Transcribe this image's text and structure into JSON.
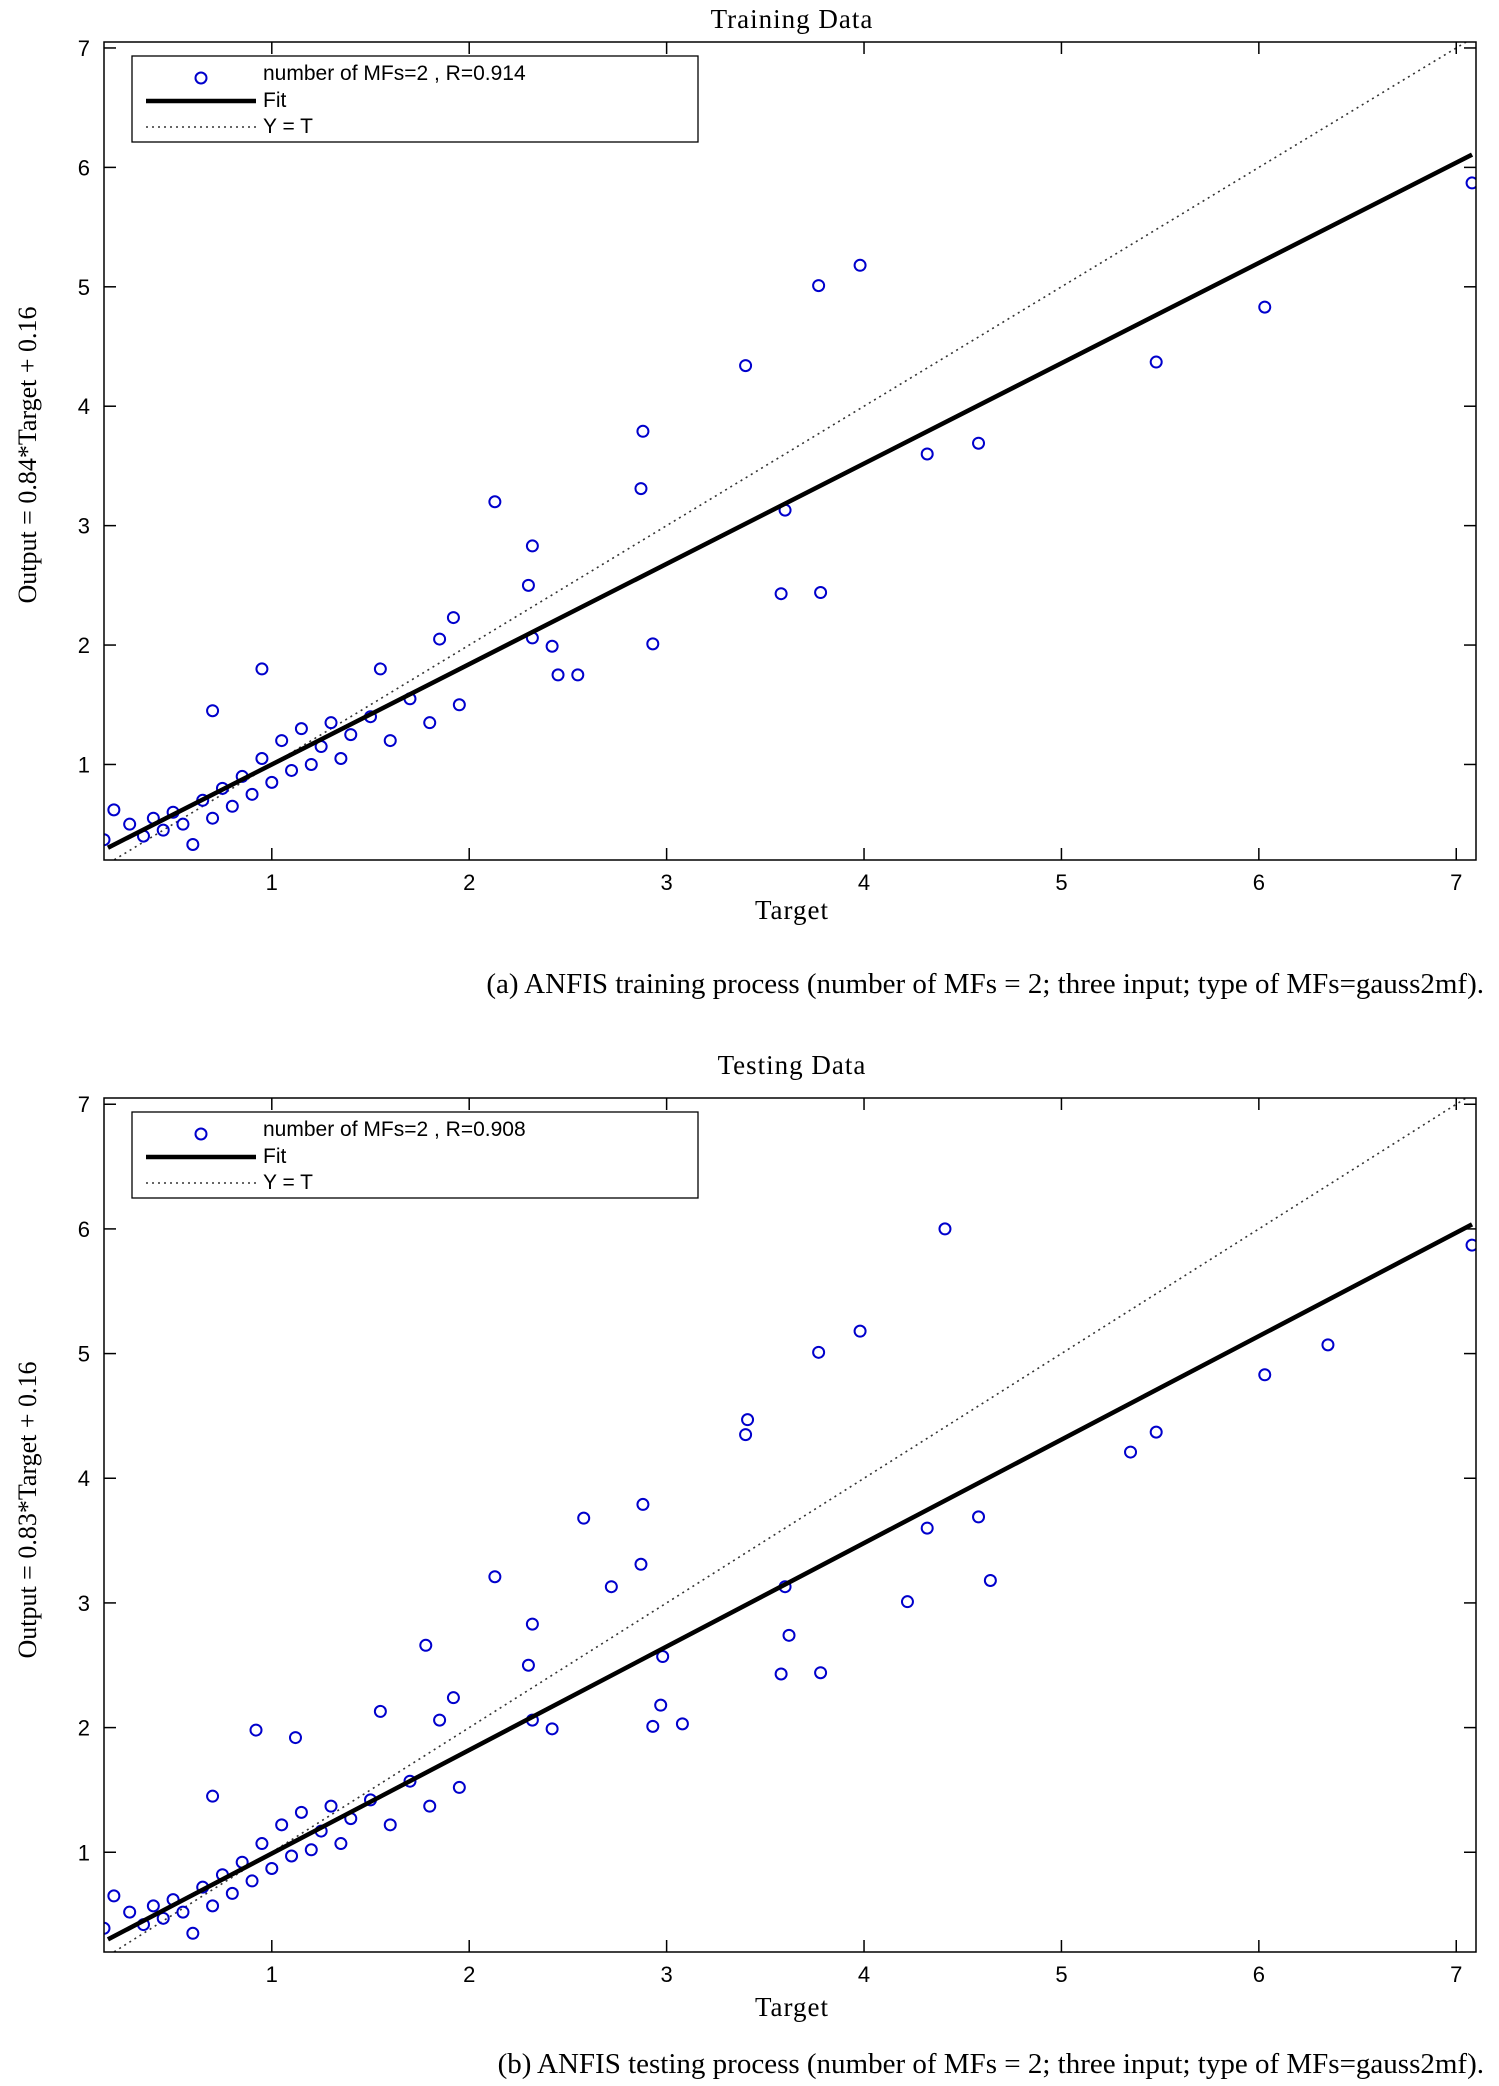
{
  "figure": {
    "marker_color": "#0000cc",
    "fit_color": "#000000"
  },
  "chart_data": [
    {
      "type": "scatter",
      "title": "Training Data",
      "xlabel": "Target",
      "ylabel": "Output  = 0.84*Target + 0.16",
      "caption": "(a)  ANFIS training process (number of MFs = 2; three input; type of MFs=gauss2mf).",
      "xlim": [
        0.15,
        7.1
      ],
      "ylim": [
        0.2,
        7.05
      ],
      "xticks": [
        1,
        2,
        3,
        4,
        5,
        6,
        7
      ],
      "yticks": [
        1,
        2,
        3,
        4,
        5,
        6,
        7
      ],
      "legend": {
        "placement": "top-left",
        "entries": [
          "number of MFs=2 , R=0.914",
          "Fit",
          "Y = T"
        ]
      },
      "fit": {
        "slope": 0.84,
        "intercept": 0.16
      },
      "series": [
        {
          "name": "number of MFs=2 , R=0.914",
          "points": [
            [
              0.15,
              0.37
            ],
            [
              0.2,
              0.62
            ],
            [
              0.28,
              0.5
            ],
            [
              0.35,
              0.4
            ],
            [
              0.4,
              0.55
            ],
            [
              0.45,
              0.45
            ],
            [
              0.5,
              0.6
            ],
            [
              0.55,
              0.5
            ],
            [
              0.6,
              0.33
            ],
            [
              0.65,
              0.7
            ],
            [
              0.7,
              0.55
            ],
            [
              0.75,
              0.8
            ],
            [
              0.8,
              0.65
            ],
            [
              0.85,
              0.9
            ],
            [
              0.9,
              0.75
            ],
            [
              0.95,
              1.05
            ],
            [
              1.0,
              0.85
            ],
            [
              1.05,
              1.2
            ],
            [
              1.1,
              0.95
            ],
            [
              1.15,
              1.3
            ],
            [
              1.2,
              1.0
            ],
            [
              1.25,
              1.15
            ],
            [
              1.3,
              1.35
            ],
            [
              1.35,
              1.05
            ],
            [
              1.4,
              1.25
            ],
            [
              1.5,
              1.4
            ],
            [
              1.55,
              1.8
            ],
            [
              1.6,
              1.2
            ],
            [
              1.7,
              1.55
            ],
            [
              1.8,
              1.35
            ],
            [
              1.85,
              2.05
            ],
            [
              1.92,
              2.23
            ],
            [
              1.95,
              1.5
            ],
            [
              2.13,
              3.2
            ],
            [
              2.3,
              2.5
            ],
            [
              2.32,
              2.83
            ],
            [
              2.32,
              2.06
            ],
            [
              2.42,
              1.99
            ],
            [
              2.45,
              1.75
            ],
            [
              2.55,
              1.75
            ],
            [
              2.88,
              3.79
            ],
            [
              2.87,
              3.31
            ],
            [
              2.93,
              2.01
            ],
            [
              3.4,
              4.34
            ],
            [
              3.58,
              2.43
            ],
            [
              3.6,
              3.13
            ],
            [
              3.78,
              2.44
            ],
            [
              3.77,
              5.01
            ],
            [
              3.98,
              5.18
            ],
            [
              4.32,
              3.6
            ],
            [
              4.58,
              3.69
            ],
            [
              5.48,
              4.37
            ],
            [
              6.03,
              4.83
            ],
            [
              7.08,
              5.87
            ],
            [
              0.95,
              1.8
            ],
            [
              0.7,
              1.45
            ]
          ]
        }
      ]
    },
    {
      "type": "scatter",
      "title": "Testing Data",
      "xlabel": "Target",
      "ylabel": "Output  = 0.83*Target + 0.16",
      "caption": "(b)  ANFIS testing process (number of MFs = 2; three input; type of MFs=gauss2mf).",
      "xlim": [
        0.15,
        7.1
      ],
      "ylim": [
        0.2,
        7.05
      ],
      "xticks": [
        1,
        2,
        3,
        4,
        5,
        6,
        7
      ],
      "yticks": [
        1,
        2,
        3,
        4,
        5,
        6,
        7
      ],
      "legend": {
        "placement": "top-left",
        "entries": [
          "number of MFs=2 , R=0.908",
          "Fit",
          "Y = T"
        ]
      },
      "fit": {
        "slope": 0.83,
        "intercept": 0.16
      },
      "series": [
        {
          "name": "number of MFs=2 , R=0.908",
          "points": [
            [
              0.15,
              0.39
            ],
            [
              0.2,
              0.65
            ],
            [
              0.28,
              0.52
            ],
            [
              0.35,
              0.42
            ],
            [
              0.4,
              0.57
            ],
            [
              0.45,
              0.47
            ],
            [
              0.5,
              0.62
            ],
            [
              0.55,
              0.52
            ],
            [
              0.6,
              0.35
            ],
            [
              0.65,
              0.72
            ],
            [
              0.7,
              0.57
            ],
            [
              0.75,
              0.82
            ],
            [
              0.8,
              0.67
            ],
            [
              0.85,
              0.92
            ],
            [
              0.9,
              0.77
            ],
            [
              0.95,
              1.07
            ],
            [
              1.0,
              0.87
            ],
            [
              1.05,
              1.22
            ],
            [
              1.1,
              0.97
            ],
            [
              1.15,
              1.32
            ],
            [
              1.2,
              1.02
            ],
            [
              1.25,
              1.17
            ],
            [
              1.3,
              1.37
            ],
            [
              1.35,
              1.07
            ],
            [
              1.4,
              1.27
            ],
            [
              1.5,
              1.42
            ],
            [
              1.55,
              2.13
            ],
            [
              1.6,
              1.22
            ],
            [
              1.7,
              1.57
            ],
            [
              1.78,
              2.66
            ],
            [
              1.8,
              1.37
            ],
            [
              1.85,
              2.06
            ],
            [
              1.92,
              2.24
            ],
            [
              1.95,
              1.52
            ],
            [
              2.13,
              3.21
            ],
            [
              2.3,
              2.5
            ],
            [
              2.32,
              2.83
            ],
            [
              2.32,
              2.06
            ],
            [
              2.42,
              1.99
            ],
            [
              2.58,
              3.68
            ],
            [
              2.72,
              3.13
            ],
            [
              2.88,
              3.79
            ],
            [
              2.87,
              3.31
            ],
            [
              2.93,
              2.01
            ],
            [
              2.97,
              2.18
            ],
            [
              2.98,
              2.57
            ],
            [
              3.08,
              2.03
            ],
            [
              3.4,
              4.35
            ],
            [
              3.41,
              4.47
            ],
            [
              3.58,
              2.43
            ],
            [
              3.6,
              3.13
            ],
            [
              3.62,
              2.74
            ],
            [
              3.78,
              2.44
            ],
            [
              3.77,
              5.01
            ],
            [
              3.98,
              5.18
            ],
            [
              4.22,
              3.01
            ],
            [
              4.32,
              3.6
            ],
            [
              4.41,
              6.0
            ],
            [
              4.58,
              3.69
            ],
            [
              4.64,
              3.18
            ],
            [
              5.35,
              4.21
            ],
            [
              5.48,
              4.37
            ],
            [
              6.03,
              4.83
            ],
            [
              6.35,
              5.07
            ],
            [
              7.08,
              5.87
            ],
            [
              0.92,
              1.98
            ],
            [
              1.12,
              1.92
            ],
            [
              0.7,
              1.45
            ]
          ]
        }
      ]
    }
  ]
}
